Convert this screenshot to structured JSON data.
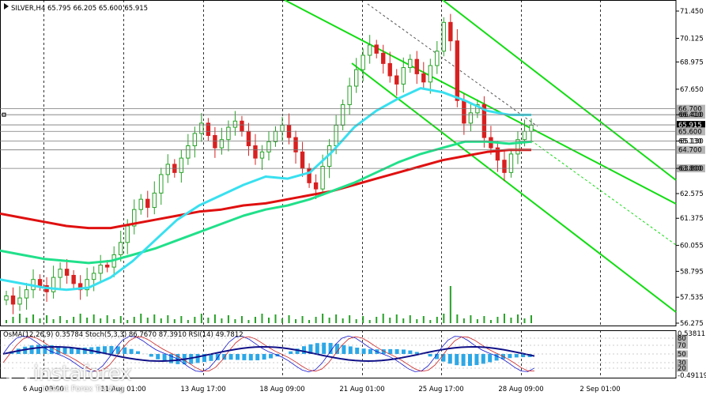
{
  "header": {
    "symbol": "SILVER,H4",
    "ohlc": "65.795 66.205 65.600 65.915"
  },
  "indicators": {
    "label": "OsMA(12,26,9) 0.35784  Stoch(5,3,3) 86.7670 87.3910  RSI(14) 49.7812"
  },
  "watermark": {
    "name": "instaforex",
    "sub": "Instant Forex Trading"
  },
  "colors": {
    "bull": "#27a127",
    "bear": "#d92020",
    "ema_slow": "#e01010",
    "ema_mid": "#20e08a",
    "ema_fast": "#38e0f0",
    "channel": "#11dd11",
    "volume": "#27a127",
    "osma": "#2aa8e8",
    "stoch_main": "#1010cc",
    "stoch_signal": "#cc2020",
    "rsi": "#101088"
  },
  "chart_data": {
    "type": "candlestick",
    "symbol": "SILVER",
    "timeframe": "H4",
    "y_ticks": [
      "71.450",
      "70.125",
      "68.975",
      "67.650",
      "66.410",
      "65.130",
      "63.800",
      "62.575",
      "61.375",
      "60.055",
      "58.795",
      "57.535",
      "56.275"
    ],
    "x_ticks": [
      "6 Aug 09:00",
      "11 Aug 01:00",
      "13 Aug 17:00",
      "18 Aug 09:00",
      "21 Aug 01:00",
      "25 Aug 17:00",
      "28 Aug 09:00",
      "2 Sep 01:00"
    ],
    "ylim": [
      56.275,
      71.45
    ],
    "price_levels": [
      {
        "label": "66.700",
        "value": 66.7,
        "style": "grey"
      },
      {
        "label": "66.410",
        "value": 66.41,
        "style": "grey"
      },
      {
        "label": "65.915",
        "value": 65.915,
        "style": "black"
      },
      {
        "label": "65.600",
        "value": 65.6,
        "style": "grey"
      },
      {
        "label": "65.130",
        "value": 65.13,
        "style": "plain"
      },
      {
        "label": "64.700",
        "value": 64.7,
        "style": "grey"
      },
      {
        "label": "63.800",
        "value": 63.8,
        "style": "grey"
      }
    ],
    "candle_closes": [
      57.6,
      57.2,
      57.5,
      57.9,
      58.4,
      58.1,
      57.8,
      58.5,
      58.9,
      58.6,
      58.2,
      57.9,
      58.4,
      58.7,
      59.1,
      59.0,
      59.6,
      60.2,
      61.0,
      61.8,
      62.3,
      61.9,
      62.6,
      63.5,
      64.0,
      63.6,
      64.3,
      64.9,
      65.5,
      66.0,
      65.4,
      64.8,
      65.2,
      65.8,
      66.1,
      65.6,
      64.9,
      64.3,
      64.6,
      65.1,
      65.6,
      65.9,
      65.3,
      64.6,
      63.8,
      63.1,
      62.8,
      63.9,
      64.9,
      65.9,
      66.9,
      67.8,
      68.6,
      69.3,
      69.8,
      69.4,
      68.9,
      68.3,
      67.9,
      68.7,
      69.1,
      68.4,
      68.0,
      68.8,
      69.5,
      70.9,
      70.0,
      67.1,
      66.0,
      66.5,
      66.9,
      65.3,
      64.8,
      64.2,
      63.6,
      64.5,
      65.2,
      65.6,
      65.9
    ],
    "ema_slow": [
      61.6,
      61.4,
      61.2,
      61.0,
      60.9,
      60.9,
      61.1,
      61.3,
      61.5,
      61.7,
      61.8,
      62.0,
      62.1,
      62.3,
      62.5,
      62.7,
      63.0,
      63.3,
      63.6,
      63.9,
      64.2,
      64.4,
      64.6,
      64.7,
      64.7
    ],
    "ema_mid": [
      59.8,
      59.6,
      59.4,
      59.3,
      59.2,
      59.3,
      59.6,
      59.9,
      60.3,
      60.7,
      61.1,
      61.5,
      61.8,
      62.0,
      62.3,
      62.7,
      63.1,
      63.6,
      64.1,
      64.5,
      64.8,
      65.1,
      65.1,
      65.0,
      65.1
    ],
    "ema_fast": [
      58.4,
      58.2,
      58.0,
      57.9,
      58.0,
      58.5,
      59.3,
      60.3,
      61.3,
      62.0,
      62.5,
      63.0,
      63.4,
      63.3,
      63.6,
      64.6,
      65.8,
      66.6,
      67.2,
      67.7,
      67.5,
      67.1,
      66.6,
      66.4,
      66.4
    ],
    "channel_lines": [
      {
        "name": "upper",
        "from": [
          "6 Aug 09:00",
          73.5
        ],
        "to": [
          "2 Sep 01:00",
          63.2
        ]
      },
      {
        "name": "middle",
        "from": [
          "11 Aug 01:00",
          71.5
        ],
        "to": [
          "2 Sep 01:00",
          62.5
        ]
      },
      {
        "name": "lower",
        "from": [
          "21 Aug 01:00",
          68.5
        ],
        "to": [
          "2 Sep 01:00",
          57.5
        ]
      }
    ],
    "osma_levels": [
      {
        "label": "0.53811"
      },
      {
        "label": "-0.49119"
      }
    ],
    "stoch_levels": [
      {
        "label": "80"
      },
      {
        "label": "70"
      },
      {
        "label": "50"
      },
      {
        "label": "30"
      },
      {
        "label": "20"
      }
    ],
    "indicator_values": {
      "osma": 0.35784,
      "stoch_main": 86.767,
      "stoch_signal": 87.391,
      "rsi": 49.7812
    }
  }
}
